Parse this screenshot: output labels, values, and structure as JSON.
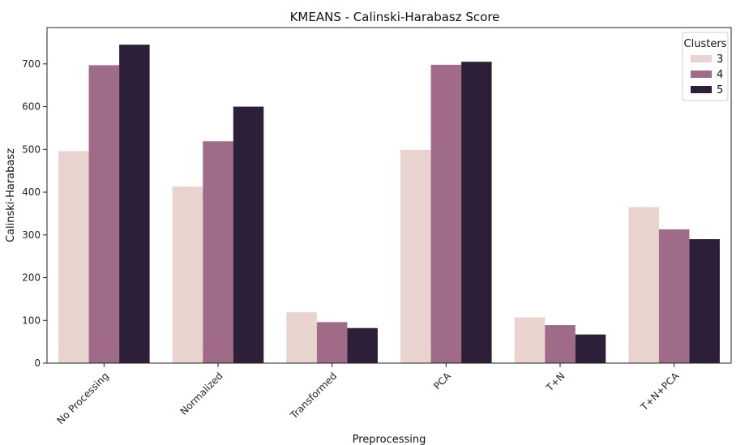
{
  "chart_data": {
    "type": "bar",
    "title": "KMEANS - Calinski-Harabasz Score",
    "xlabel": "Preprocessing",
    "ylabel": "Calinski-Harabasz",
    "categories": [
      "No Processing",
      "Normalized",
      "Transformed",
      "PCA",
      "T+N",
      "T+N+PCA"
    ],
    "series": [
      {
        "name": "3",
        "color": "#e8d3cf",
        "values": [
          496,
          413,
          119,
          499,
          107,
          365
        ]
      },
      {
        "name": "4",
        "color": "#a06b89",
        "values": [
          697,
          519,
          96,
          698,
          89,
          313
        ]
      },
      {
        "name": "5",
        "color": "#2e1f38",
        "values": [
          745,
          600,
          82,
          705,
          67,
          290
        ]
      }
    ],
    "ylim": [
      0,
      785
    ],
    "yticks": [
      0,
      100,
      200,
      300,
      400,
      500,
      600,
      700
    ],
    "legend": {
      "title": "Clusters",
      "placement": "top-right"
    },
    "grid": false
  }
}
